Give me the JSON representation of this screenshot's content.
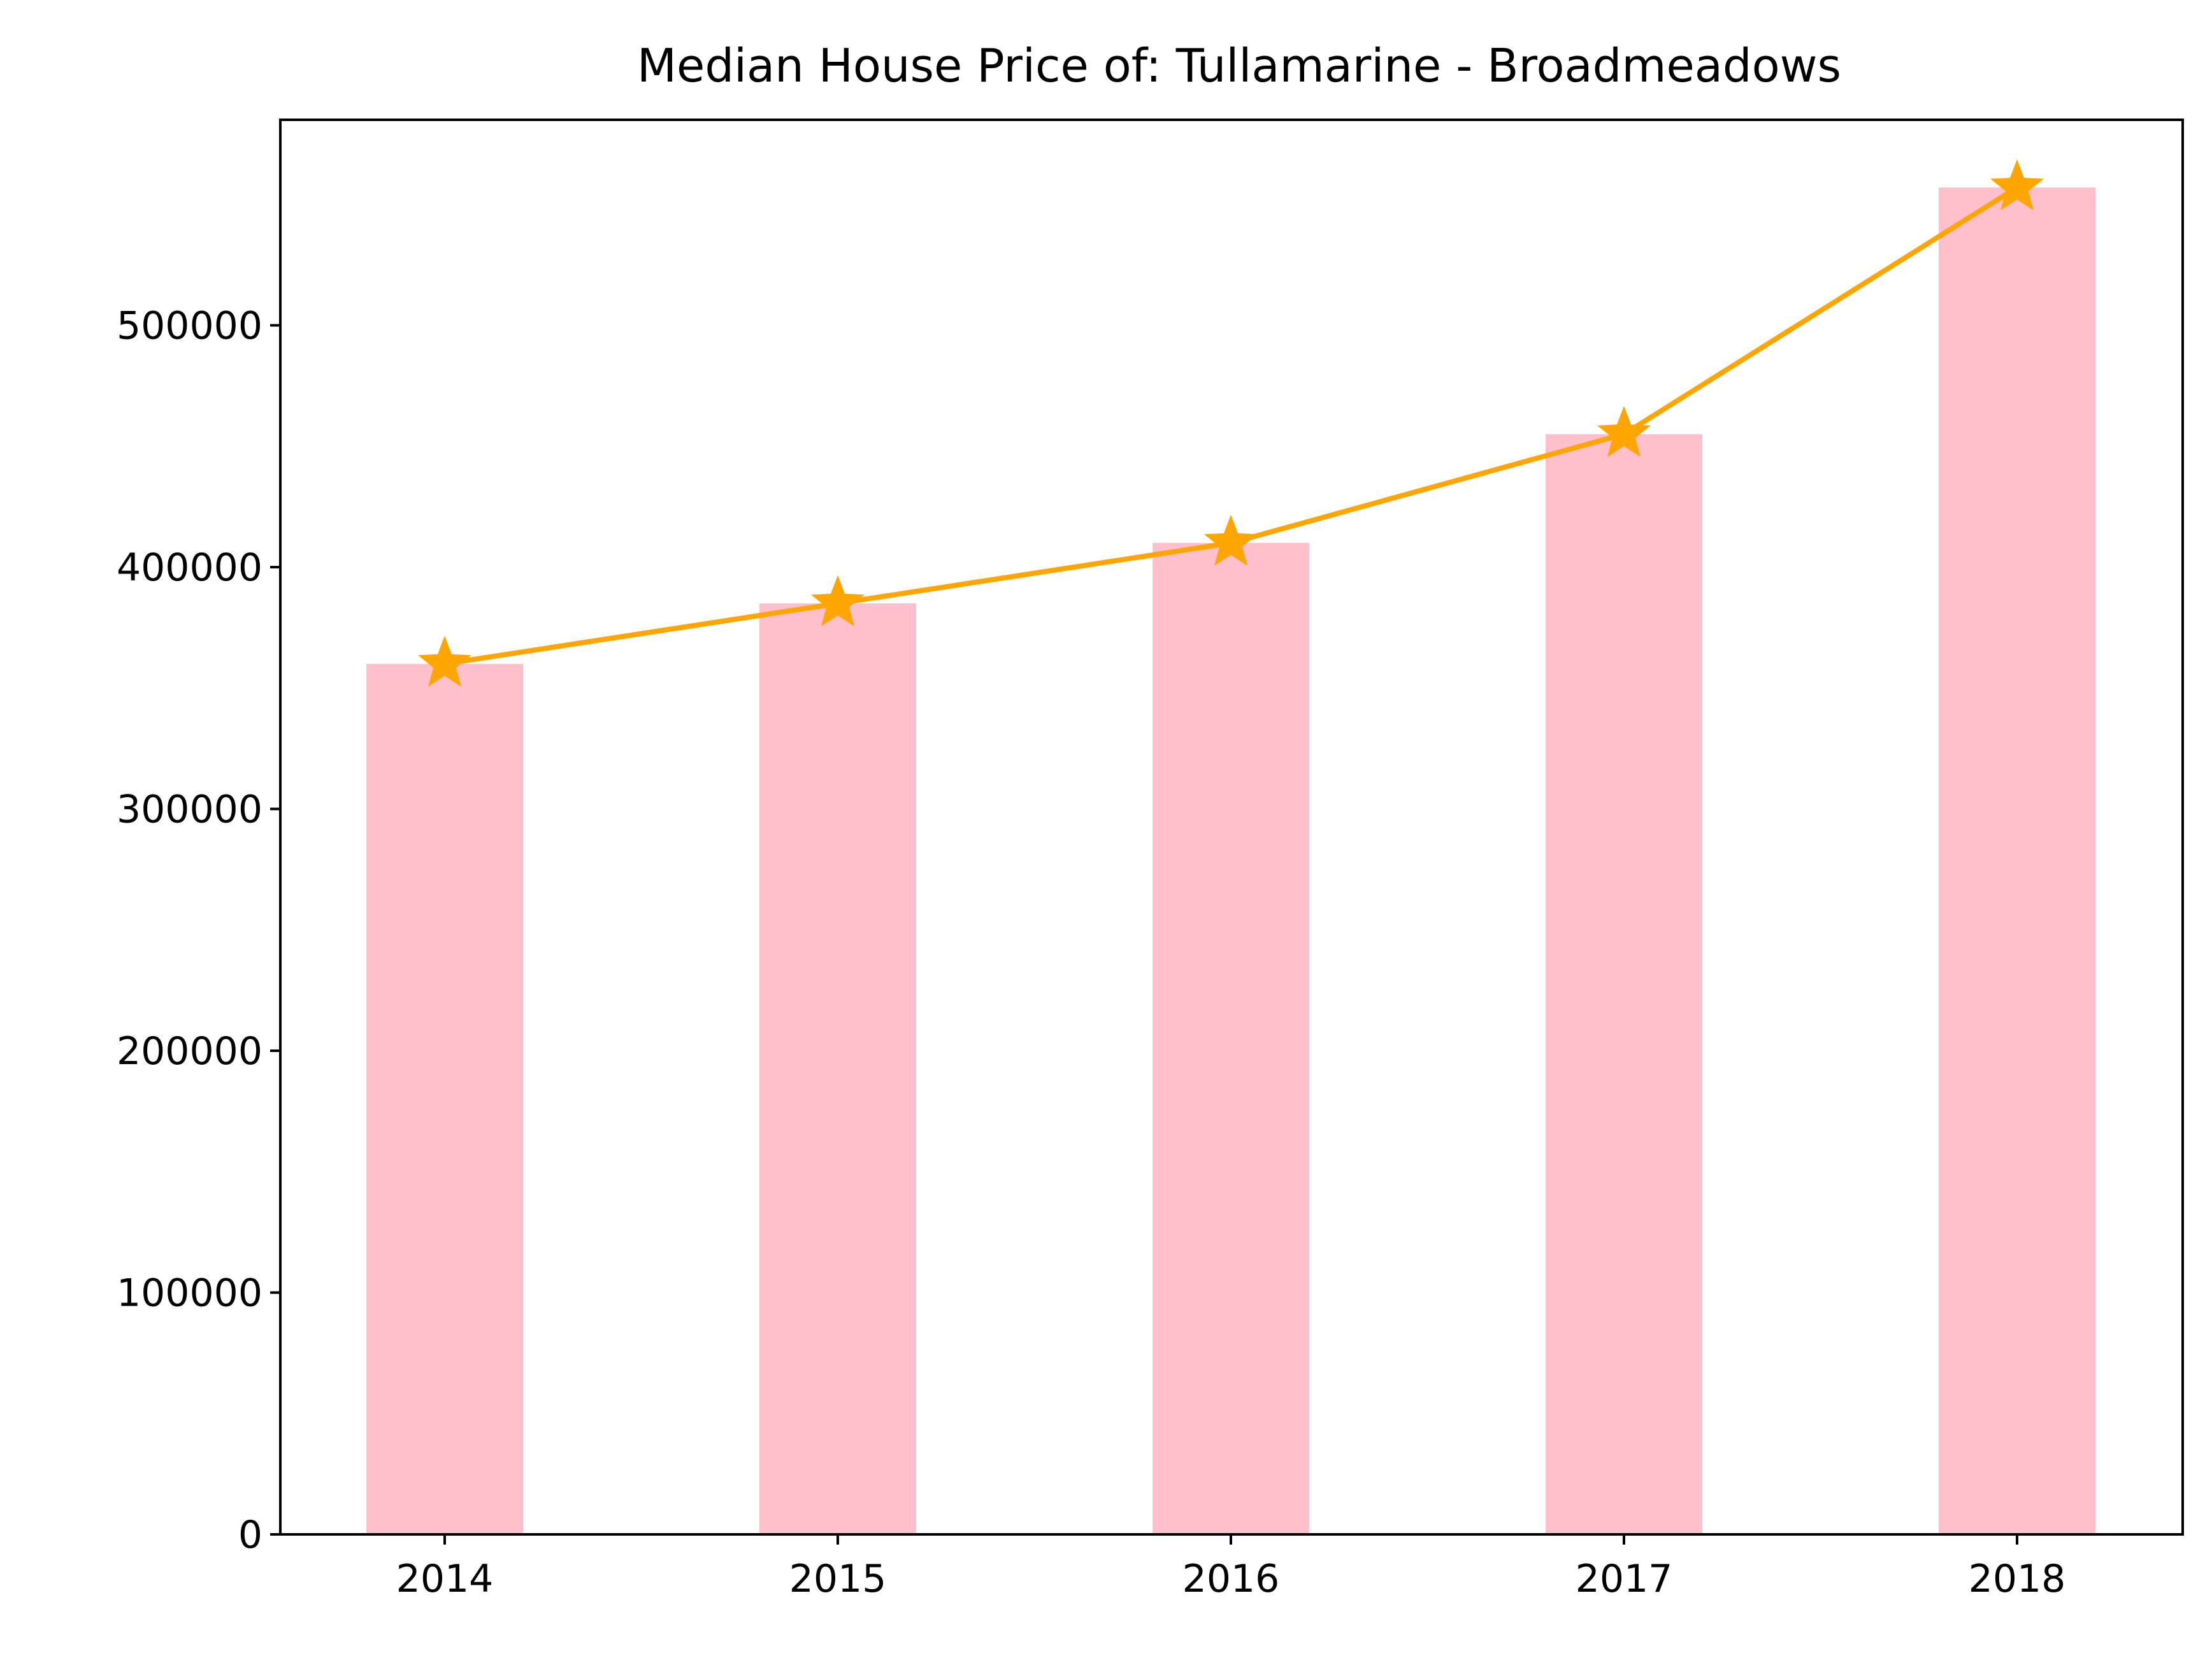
{
  "chart_data": {
    "type": "bar",
    "title": "Median House Price of: Tullamarine - Broadmeadows",
    "xlabel": "",
    "ylabel": "",
    "categories": [
      "2014",
      "2015",
      "2016",
      "2017",
      "2018"
    ],
    "series": [
      {
        "type": "bar",
        "values": [
          360000,
          385000,
          410000,
          455000,
          557000
        ],
        "color": "#ffc0cb"
      },
      {
        "type": "line",
        "marker": "star",
        "values": [
          360000,
          385000,
          410000,
          455000,
          557000
        ],
        "color": "#ffa500"
      }
    ],
    "ylim": [
      0,
      585000
    ],
    "yticks": [
      0,
      100000,
      200000,
      300000,
      400000,
      500000
    ],
    "grid": false,
    "legend": "none"
  }
}
